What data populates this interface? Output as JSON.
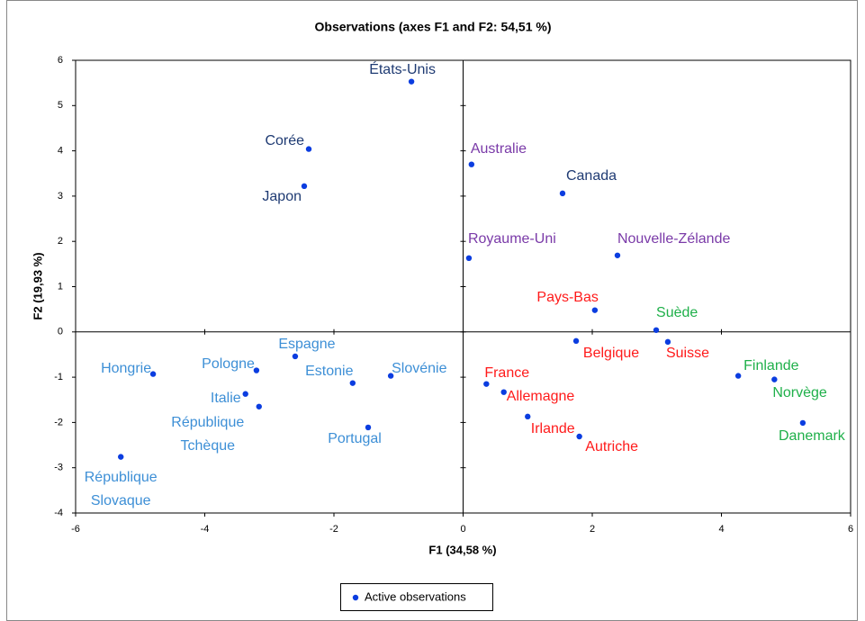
{
  "chart_data": {
    "type": "scatter",
    "title": "Observations (axes F1 and F2: 54,51 %)",
    "x_label": "F1 (34,58 %)",
    "y_label": "F2 (19,93 %)",
    "xlim": [
      -6,
      6
    ],
    "xticks": [
      -6,
      -4,
      -2,
      0,
      2,
      4,
      6
    ],
    "ylim": [
      -4,
      6
    ],
    "yticks": [
      -4,
      -3,
      -2,
      -1,
      0,
      1,
      2,
      3,
      4,
      5,
      6
    ],
    "series": [
      {
        "name": "Active observations",
        "color": "#0b3de0",
        "x": [
          -0.8,
          -2.39,
          -2.46,
          0.13,
          1.54,
          0.09,
          2.39,
          2.04,
          2.99,
          1.75,
          3.17,
          4.26,
          4.82,
          5.26,
          0.36,
          0.63,
          1.0,
          1.8,
          -1.12,
          -1.71,
          -2.6,
          -3.2,
          -4.8,
          -3.37,
          -3.16,
          -1.47,
          -5.3
        ],
        "values": [
          5.53,
          4.04,
          3.22,
          3.7,
          3.06,
          1.63,
          1.69,
          0.48,
          0.04,
          -0.2,
          -0.22,
          -0.97,
          -1.05,
          -2.01,
          -1.15,
          -1.33,
          -1.87,
          -2.31,
          -0.97,
          -1.13,
          -0.54,
          -0.85,
          -0.93,
          -1.37,
          -1.65,
          -2.11,
          -2.76
        ],
        "labels": [
          "États-Unis",
          "Corée",
          "Japon",
          "Australie",
          "Canada",
          "Royaume-Uni",
          "Nouvelle-Zélande",
          "Pays-Bas",
          "Suède",
          "Belgique",
          "Suisse",
          "Finlande",
          "Norvège",
          "Danemark",
          "France",
          "Allemagne",
          "Irlande",
          "Autriche",
          "Slovénie",
          "Estonie",
          "Espagne",
          "Pologne",
          "Hongrie",
          "Italie",
          [
            "République",
            "Tchèque"
          ],
          "Portugal",
          [
            "République",
            "Slovaque"
          ]
        ],
        "label_colors": [
          "#1f3b73",
          "#1f3b73",
          "#1f3b73",
          "#7a3aa8",
          "#1f3b73",
          "#7a3aa8",
          "#7a3aa8",
          "#ff1a1a",
          "#1fb04a",
          "#ff1a1a",
          "#ff1a1a",
          "#1fb04a",
          "#1fb04a",
          "#1fb04a",
          "#ff1a1a",
          "#ff1a1a",
          "#ff1a1a",
          "#ff1a1a",
          "#3d8fd6",
          "#3d8fd6",
          "#3d8fd6",
          "#3d8fd6",
          "#3d8fd6",
          "#3d8fd6",
          "#3d8fd6",
          "#3d8fd6",
          "#3d8fd6"
        ]
      }
    ],
    "legend": "bottom"
  }
}
